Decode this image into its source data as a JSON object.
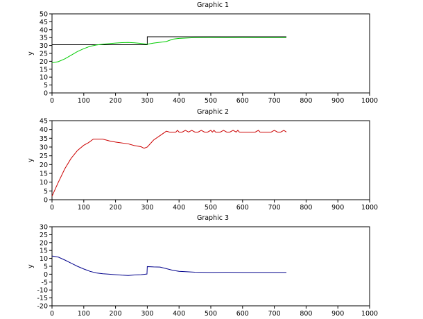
{
  "chart_data": [
    {
      "type": "line",
      "title": "Graphic 1",
      "xlabel": "",
      "ylabel": "y",
      "xlim": [
        0,
        1000
      ],
      "ylim": [
        0,
        50
      ],
      "xticks": [
        0,
        100,
        200,
        300,
        400,
        500,
        600,
        700,
        800,
        900,
        1000
      ],
      "yticks": [
        0,
        5,
        10,
        15,
        20,
        25,
        30,
        35,
        40,
        45,
        50
      ],
      "grid": false,
      "series": [
        {
          "name": "setpoint",
          "color": "#000000",
          "step": true,
          "x": [
            0,
            300,
            300,
            738
          ],
          "y": [
            30.5,
            30.5,
            35.5,
            35.5
          ]
        },
        {
          "name": "output",
          "color": "#00cc00",
          "x": [
            0,
            20,
            40,
            60,
            80,
            100,
            120,
            140,
            160,
            180,
            200,
            220,
            240,
            260,
            280,
            300,
            320,
            340,
            360,
            380,
            400,
            450,
            500,
            550,
            600,
            650,
            700,
            738
          ],
          "y": [
            19,
            19.8,
            21.5,
            23.8,
            26.2,
            28,
            29.5,
            30.3,
            30.8,
            31.2,
            31.5,
            31.8,
            31.9,
            31.7,
            31.3,
            30.8,
            31.5,
            32,
            32.5,
            34,
            34.5,
            35,
            35.1,
            35,
            35.1,
            35,
            35,
            35
          ]
        }
      ]
    },
    {
      "type": "line",
      "title": "Graphic 2",
      "xlabel": "",
      "ylabel": "y",
      "xlim": [
        0,
        1000
      ],
      "ylim": [
        0,
        45
      ],
      "xticks": [
        0,
        100,
        200,
        300,
        400,
        500,
        600,
        700,
        800,
        900,
        1000
      ],
      "yticks": [
        0,
        5,
        10,
        15,
        20,
        25,
        30,
        35,
        40,
        45
      ],
      "grid": false,
      "series": [
        {
          "name": "signal",
          "color": "#cc0000",
          "x": [
            0,
            20,
            40,
            60,
            80,
            100,
            115,
            130,
            160,
            180,
            200,
            240,
            260,
            280,
            290,
            300,
            320,
            340,
            360,
            370,
            380,
            390,
            395,
            400,
            410,
            420,
            430,
            440,
            450,
            460,
            470,
            480,
            490,
            500,
            505,
            510,
            515,
            520,
            530,
            540,
            550,
            560,
            570,
            580,
            585,
            590,
            600,
            620,
            640,
            650,
            655,
            660,
            670,
            690,
            700,
            710,
            720,
            730,
            738
          ],
          "y": [
            2,
            10,
            17.5,
            23.5,
            28,
            31,
            32.5,
            34.5,
            34.5,
            33.5,
            32.8,
            31.8,
            30.8,
            30.2,
            29.3,
            30,
            34,
            36.5,
            39,
            38.5,
            38.5,
            38.5,
            39.5,
            38.5,
            38.5,
            39.5,
            38.5,
            39.5,
            38.5,
            38.5,
            39.5,
            38.5,
            38.5,
            39.5,
            38.5,
            39.5,
            38.5,
            38.5,
            38.5,
            39.5,
            38.5,
            38.5,
            39.5,
            38.5,
            39.5,
            38.5,
            38.5,
            38.5,
            38.5,
            39.5,
            38.5,
            38.5,
            38.5,
            38.5,
            39.5,
            38.5,
            38.5,
            39.5,
            38.5
          ]
        }
      ]
    },
    {
      "type": "line",
      "title": "Graphic 3",
      "xlabel": "",
      "ylabel": "y",
      "xlim": [
        0,
        1000
      ],
      "ylim": [
        -20,
        30
      ],
      "xticks": [
        0,
        100,
        200,
        300,
        400,
        500,
        600,
        700,
        800,
        900,
        1000
      ],
      "yticks": [
        -20,
        -15,
        -10,
        -5,
        0,
        5,
        10,
        15,
        20,
        25,
        30
      ],
      "grid": false,
      "series": [
        {
          "name": "error",
          "color": "#00008b",
          "x": [
            0,
            20,
            40,
            60,
            80,
            100,
            120,
            140,
            160,
            180,
            200,
            220,
            240,
            260,
            280,
            299,
            300,
            320,
            340,
            360,
            380,
            400,
            450,
            500,
            550,
            600,
            650,
            700,
            738
          ],
          "y": [
            11.5,
            10.8,
            9,
            7,
            5,
            3.3,
            1.8,
            0.8,
            0.3,
            0,
            -0.3,
            -0.6,
            -0.8,
            -0.5,
            -0.3,
            0.1,
            4.8,
            4.6,
            4.5,
            3.5,
            2.5,
            1.8,
            1.3,
            1.1,
            1.2,
            1.1,
            1.1,
            1.1,
            1.1
          ]
        }
      ]
    }
  ]
}
